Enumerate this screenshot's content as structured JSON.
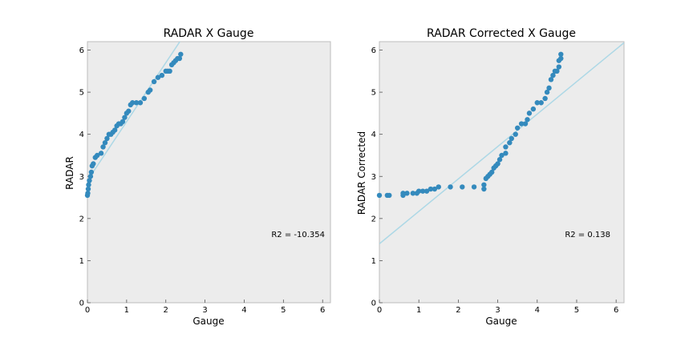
{
  "colors": {
    "plot_bg": "#ececec",
    "spine": "#bcbcbc",
    "marker": "#348abd",
    "fit_line": "#add8e6"
  },
  "chart_data": [
    {
      "type": "scatter",
      "title": "RADAR X Gauge",
      "xlabel": "Gauge",
      "ylabel": "RADAR",
      "xlim": [
        0,
        6.2
      ],
      "ylim": [
        0,
        6.2
      ],
      "xticks": [
        "0",
        "1",
        "2",
        "3",
        "4",
        "5",
        "6"
      ],
      "yticks": [
        "0",
        "1",
        "2",
        "3",
        "4",
        "5",
        "6"
      ],
      "grid": false,
      "annotation": "R2 = -10.354",
      "fit_line": {
        "slope": 1.4,
        "intercept": 2.9
      },
      "points": [
        [
          0.0,
          2.55
        ],
        [
          0.01,
          2.6
        ],
        [
          0.02,
          2.7
        ],
        [
          0.03,
          2.8
        ],
        [
          0.05,
          2.9
        ],
        [
          0.08,
          3.0
        ],
        [
          0.1,
          3.1
        ],
        [
          0.12,
          3.25
        ],
        [
          0.15,
          3.3
        ],
        [
          0.2,
          3.45
        ],
        [
          0.25,
          3.5
        ],
        [
          0.35,
          3.55
        ],
        [
          0.4,
          3.7
        ],
        [
          0.45,
          3.8
        ],
        [
          0.5,
          3.9
        ],
        [
          0.55,
          4.0
        ],
        [
          0.6,
          4.0
        ],
        [
          0.65,
          4.05
        ],
        [
          0.7,
          4.1
        ],
        [
          0.75,
          4.2
        ],
        [
          0.8,
          4.25
        ],
        [
          0.85,
          4.25
        ],
        [
          0.9,
          4.3
        ],
        [
          0.95,
          4.4
        ],
        [
          1.0,
          4.5
        ],
        [
          1.05,
          4.55
        ],
        [
          1.1,
          4.7
        ],
        [
          1.15,
          4.75
        ],
        [
          1.25,
          4.75
        ],
        [
          1.35,
          4.75
        ],
        [
          1.45,
          4.85
        ],
        [
          1.55,
          5.0
        ],
        [
          1.6,
          5.05
        ],
        [
          1.7,
          5.25
        ],
        [
          1.8,
          5.35
        ],
        [
          1.9,
          5.4
        ],
        [
          2.0,
          5.5
        ],
        [
          2.05,
          5.5
        ],
        [
          2.1,
          5.5
        ],
        [
          2.15,
          5.65
        ],
        [
          2.2,
          5.7
        ],
        [
          2.25,
          5.75
        ],
        [
          2.3,
          5.8
        ],
        [
          2.35,
          5.8
        ],
        [
          2.38,
          5.9
        ]
      ]
    },
    {
      "type": "scatter",
      "title": "RADAR Corrected X Gauge",
      "xlabel": "Gauge",
      "ylabel": "RADAR Corrected",
      "xlim": [
        0,
        6.2
      ],
      "ylim": [
        0,
        6.2
      ],
      "xticks": [
        "0",
        "1",
        "2",
        "3",
        "4",
        "5",
        "6"
      ],
      "yticks": [
        "0",
        "1",
        "2",
        "3",
        "4",
        "5",
        "6"
      ],
      "grid": false,
      "annotation": "R2 = 0.138",
      "fit_line": {
        "slope": 0.77,
        "intercept": 1.4
      },
      "points": [
        [
          0.0,
          2.55
        ],
        [
          0.2,
          2.55
        ],
        [
          0.25,
          2.55
        ],
        [
          0.6,
          2.55
        ],
        [
          0.6,
          2.6
        ],
        [
          0.7,
          2.6
        ],
        [
          0.85,
          2.6
        ],
        [
          0.95,
          2.6
        ],
        [
          1.0,
          2.65
        ],
        [
          1.1,
          2.65
        ],
        [
          1.2,
          2.65
        ],
        [
          1.3,
          2.7
        ],
        [
          1.4,
          2.7
        ],
        [
          1.5,
          2.75
        ],
        [
          1.8,
          2.75
        ],
        [
          2.1,
          2.75
        ],
        [
          2.4,
          2.75
        ],
        [
          2.65,
          2.7
        ],
        [
          2.65,
          2.8
        ],
        [
          2.7,
          2.95
        ],
        [
          2.75,
          3.0
        ],
        [
          2.8,
          3.05
        ],
        [
          2.85,
          3.1
        ],
        [
          2.9,
          3.2
        ],
        [
          2.95,
          3.25
        ],
        [
          3.0,
          3.3
        ],
        [
          3.05,
          3.4
        ],
        [
          3.1,
          3.5
        ],
        [
          3.2,
          3.55
        ],
        [
          3.2,
          3.7
        ],
        [
          3.3,
          3.8
        ],
        [
          3.35,
          3.9
        ],
        [
          3.45,
          4.0
        ],
        [
          3.5,
          4.15
        ],
        [
          3.6,
          4.25
        ],
        [
          3.7,
          4.25
        ],
        [
          3.75,
          4.35
        ],
        [
          3.8,
          4.5
        ],
        [
          3.9,
          4.6
        ],
        [
          4.0,
          4.75
        ],
        [
          4.1,
          4.75
        ],
        [
          4.2,
          4.85
        ],
        [
          4.25,
          5.0
        ],
        [
          4.3,
          5.1
        ],
        [
          4.35,
          5.3
        ],
        [
          4.4,
          5.4
        ],
        [
          4.45,
          5.5
        ],
        [
          4.5,
          5.5
        ],
        [
          4.55,
          5.6
        ],
        [
          4.55,
          5.75
        ],
        [
          4.6,
          5.8
        ],
        [
          4.6,
          5.9
        ]
      ]
    }
  ]
}
